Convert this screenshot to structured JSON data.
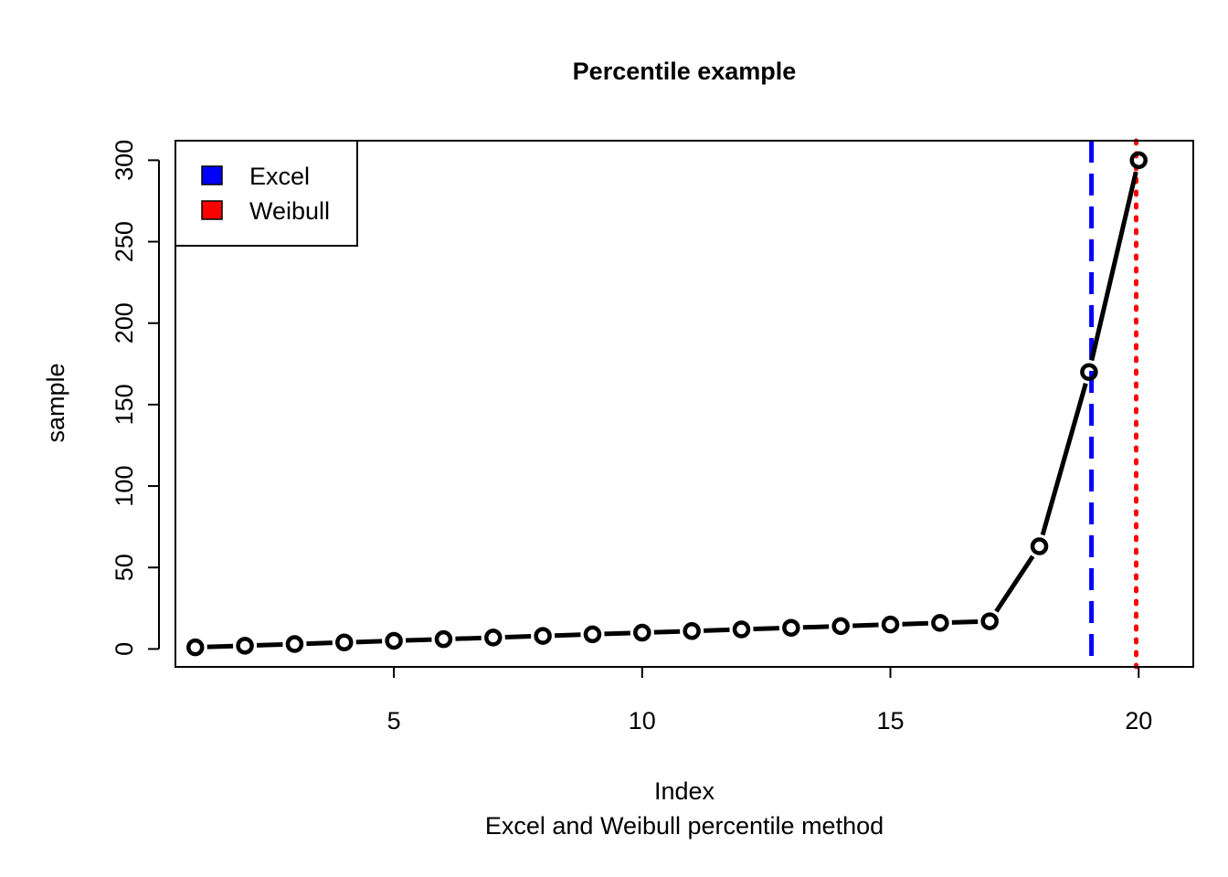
{
  "chart_data": {
    "type": "line",
    "title": "Percentile example",
    "xlabel": "Index",
    "subtitle": "Excel and Weibull percentile method",
    "ylabel": "sample",
    "xlim": [
      0.6,
      21.1
    ],
    "ylim": [
      -11,
      312
    ],
    "x_ticks": [
      5,
      10,
      15,
      20
    ],
    "y_ticks": [
      0,
      50,
      100,
      150,
      200,
      250,
      300
    ],
    "grid": false,
    "series": [
      {
        "name": "sample",
        "color": "#000000",
        "x": [
          1,
          2,
          3,
          4,
          5,
          6,
          7,
          8,
          9,
          10,
          11,
          12,
          13,
          14,
          15,
          16,
          17,
          18,
          19,
          20
        ],
        "values": [
          1,
          2,
          3,
          4,
          5,
          6,
          7,
          8,
          9,
          10,
          11,
          12,
          13,
          14,
          15,
          16,
          17,
          63,
          170,
          300
        ]
      }
    ],
    "vlines": [
      {
        "name": "Excel",
        "x": 19.05,
        "color": "#0000ff",
        "style": "dashed"
      },
      {
        "name": "Weibull",
        "x": 19.95,
        "color": "#ff0000",
        "style": "dotted"
      }
    ],
    "legend": {
      "position": "top-left",
      "entries": [
        {
          "label": "Excel",
          "color": "#0000ff"
        },
        {
          "label": "Weibull",
          "color": "#ff0000"
        }
      ]
    }
  }
}
